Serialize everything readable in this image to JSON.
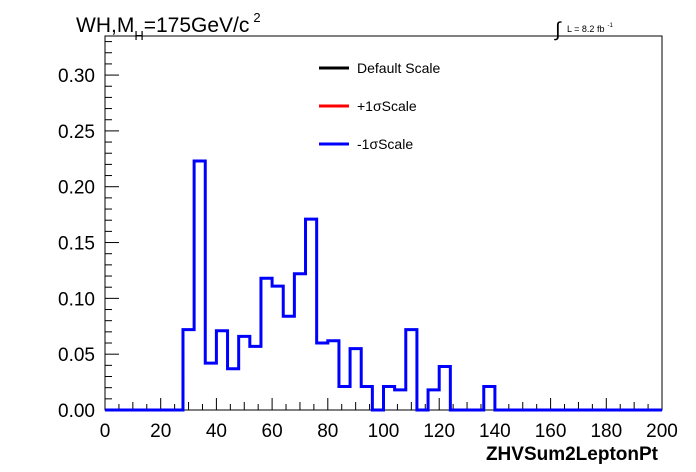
{
  "chart_data": {
    "type": "step-histogram",
    "title": {
      "prefix": "WH,M",
      "subscript": "H",
      "value": "=175GeV/c",
      "superscript": "2"
    },
    "luminosity": {
      "integral_symbol": "∫",
      "text": "L = 8.2 fb",
      "superscript": "-1"
    },
    "xlabel": "ZHVSum2LeptonPt",
    "ylabel": "",
    "xlim": [
      0,
      200
    ],
    "ylim": [
      0,
      0.335
    ],
    "x_ticks": [
      0,
      20,
      40,
      60,
      80,
      100,
      120,
      140,
      160,
      180,
      200
    ],
    "x_tick_labels": [
      "0",
      "20",
      "40",
      "60",
      "80",
      "100",
      "120",
      "140",
      "160",
      "180",
      "200"
    ],
    "y_ticks": [
      0,
      0.05,
      0.1,
      0.15,
      0.2,
      0.25,
      0.3
    ],
    "y_tick_labels": [
      "0.00",
      "0.05",
      "0.10",
      "0.15",
      "0.20",
      "0.25",
      "0.30"
    ],
    "bin_width": 4,
    "bin_edges_start": 0,
    "legend": {
      "placement": "top-center",
      "entries": [
        {
          "label": "Default Scale",
          "color": "#000000"
        },
        {
          "label": "+1σScale",
          "color": "#ff0000"
        },
        {
          "label": "-1σScale",
          "color": "#0000ff"
        }
      ]
    },
    "series": [
      {
        "name": "-1σScale",
        "color": "#0000ff",
        "values": [
          0,
          0,
          0,
          0,
          0,
          0,
          0,
          0.072,
          0.223,
          0.042,
          0.071,
          0.037,
          0.066,
          0.057,
          0.118,
          0.111,
          0.084,
          0.122,
          0.171,
          0.06,
          0.062,
          0.021,
          0.055,
          0.021,
          0,
          0.021,
          0.018,
          0.072,
          0,
          0.018,
          0.039,
          0,
          0,
          0,
          0.021,
          0,
          0,
          0,
          0,
          0,
          0,
          0,
          0,
          0,
          0,
          0,
          0,
          0,
          0,
          0
        ]
      }
    ]
  }
}
